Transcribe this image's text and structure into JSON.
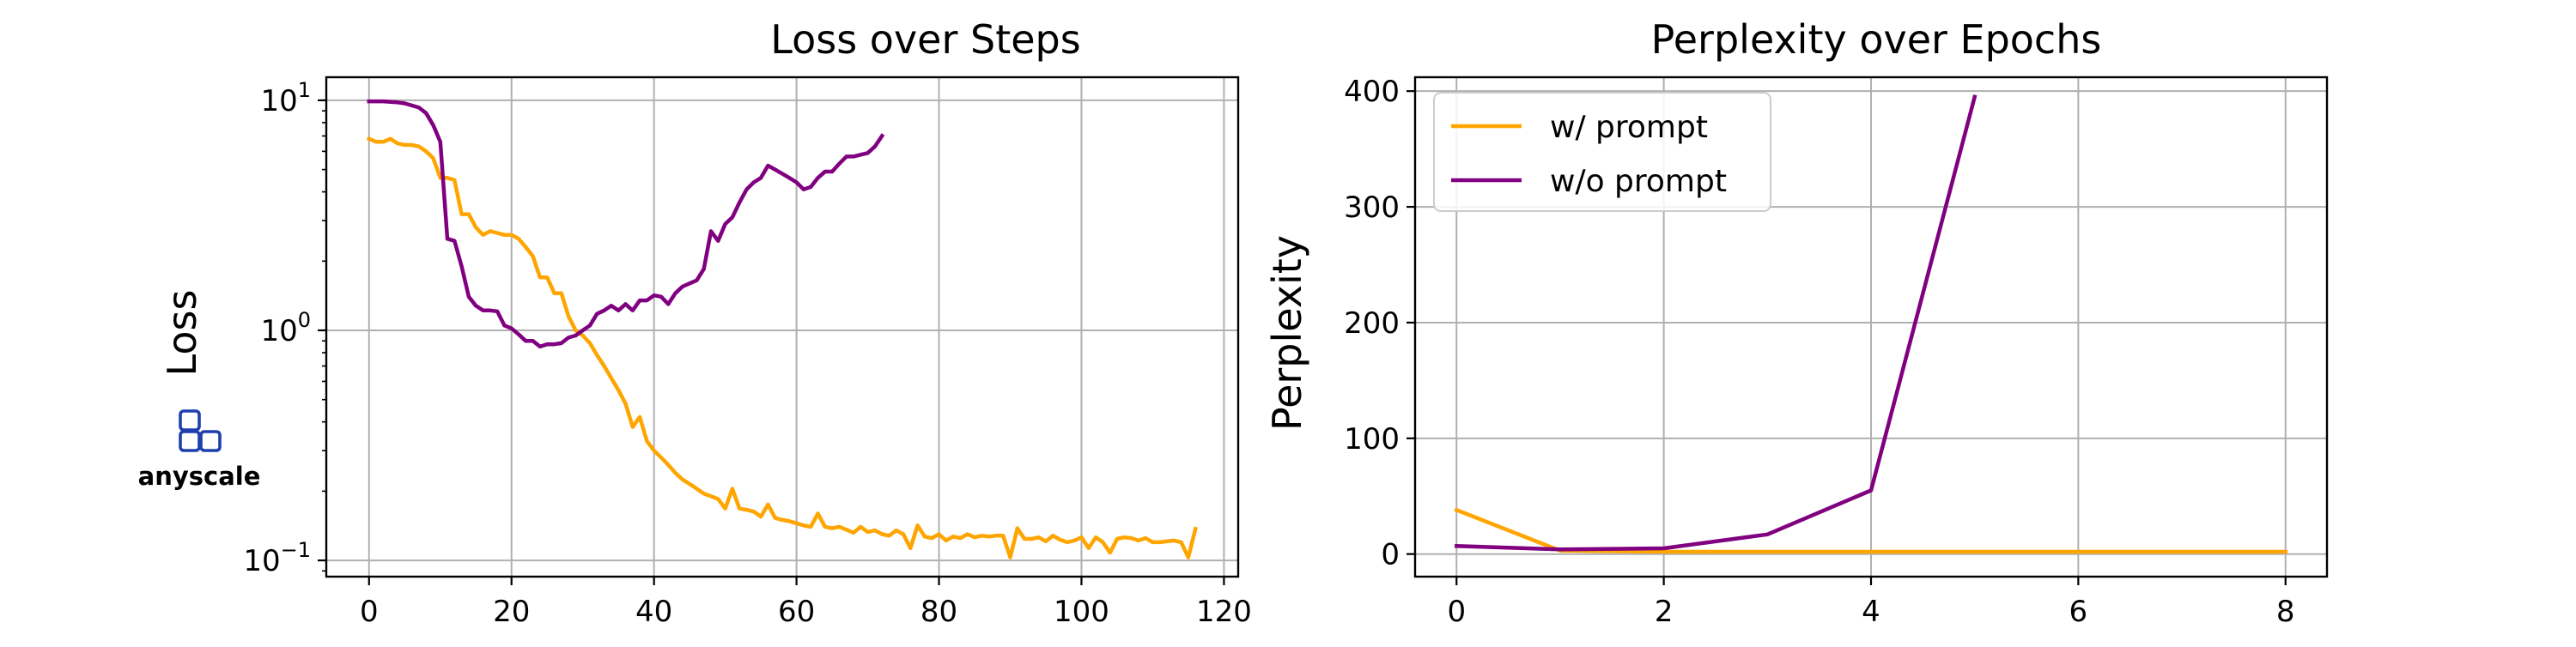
{
  "brand": {
    "name": "anyscale",
    "color": "#1f3fae"
  },
  "chart_data": [
    {
      "type": "line",
      "title": "Loss over Steps",
      "xlabel": "",
      "ylabel": "Loss",
      "yscale": "log",
      "xlim": [
        -6,
        122
      ],
      "ylim": [
        0.085,
        12.6
      ],
      "grid": true,
      "legend": "none",
      "x_ticks": [
        0,
        20,
        40,
        60,
        80,
        100,
        120
      ],
      "x_tick_labels": [
        "0",
        "20",
        "40",
        "60",
        "80",
        "100",
        "120"
      ],
      "y_ticks": [
        0.1,
        1,
        10
      ],
      "y_tick_labels": [
        {
          "base": "10",
          "exp": "−1"
        },
        {
          "base": "10",
          "exp": "0"
        },
        {
          "base": "10",
          "exp": "1"
        }
      ],
      "series": [
        {
          "name": "w/ prompt",
          "color": "#ffa500",
          "points": [
            [
              0,
              6.8
            ],
            [
              1,
              6.6
            ],
            [
              2,
              6.6
            ],
            [
              3,
              6.8
            ],
            [
              4,
              6.5
            ],
            [
              5,
              6.4
            ],
            [
              6,
              6.4
            ],
            [
              7,
              6.3
            ],
            [
              8,
              6.0
            ],
            [
              9,
              5.6
            ],
            [
              10,
              4.6
            ],
            [
              11,
              4.6
            ],
            [
              12,
              4.5
            ],
            [
              13,
              3.2
            ],
            [
              14,
              3.2
            ],
            [
              15,
              2.8
            ],
            [
              16,
              2.6
            ],
            [
              17,
              2.7
            ],
            [
              18,
              2.65
            ],
            [
              19,
              2.6
            ],
            [
              20,
              2.6
            ],
            [
              21,
              2.5
            ],
            [
              22,
              2.3
            ],
            [
              23,
              2.1
            ],
            [
              24,
              1.7
            ],
            [
              25,
              1.7
            ],
            [
              26,
              1.45
            ],
            [
              27,
              1.45
            ],
            [
              28,
              1.15
            ],
            [
              29,
              1.0
            ],
            [
              30,
              0.95
            ],
            [
              31,
              0.88
            ],
            [
              32,
              0.78
            ],
            [
              33,
              0.7
            ],
            [
              34,
              0.62
            ],
            [
              35,
              0.55
            ],
            [
              36,
              0.48
            ],
            [
              37,
              0.38
            ],
            [
              38,
              0.42
            ],
            [
              39,
              0.33
            ],
            [
              40,
              0.3
            ],
            [
              41,
              0.28
            ],
            [
              42,
              0.26
            ],
            [
              43,
              0.24
            ],
            [
              44,
              0.225
            ],
            [
              45,
              0.215
            ],
            [
              46,
              0.205
            ],
            [
              47,
              0.195
            ],
            [
              48,
              0.19
            ],
            [
              49,
              0.185
            ],
            [
              50,
              0.168
            ],
            [
              51,
              0.205
            ],
            [
              52,
              0.168
            ],
            [
              53,
              0.166
            ],
            [
              54,
              0.163
            ],
            [
              55,
              0.155
            ],
            [
              56,
              0.175
            ],
            [
              57,
              0.153
            ],
            [
              58,
              0.15
            ],
            [
              59,
              0.148
            ],
            [
              60,
              0.145
            ],
            [
              61,
              0.142
            ],
            [
              62,
              0.14
            ],
            [
              63,
              0.16
            ],
            [
              64,
              0.14
            ],
            [
              65,
              0.138
            ],
            [
              66,
              0.14
            ],
            [
              67,
              0.136
            ],
            [
              68,
              0.132
            ],
            [
              69,
              0.14
            ],
            [
              70,
              0.133
            ],
            [
              71,
              0.135
            ],
            [
              72,
              0.13
            ],
            [
              73,
              0.128
            ],
            [
              74,
              0.135
            ],
            [
              75,
              0.13
            ],
            [
              76,
              0.113
            ],
            [
              77,
              0.142
            ],
            [
              78,
              0.127
            ],
            [
              79,
              0.125
            ],
            [
              80,
              0.13
            ],
            [
              81,
              0.122
            ],
            [
              82,
              0.127
            ],
            [
              83,
              0.125
            ],
            [
              84,
              0.13
            ],
            [
              85,
              0.126
            ],
            [
              86,
              0.128
            ],
            [
              87,
              0.127
            ],
            [
              88,
              0.128
            ],
            [
              89,
              0.128
            ],
            [
              90,
              0.103
            ],
            [
              91,
              0.138
            ],
            [
              92,
              0.124
            ],
            [
              93,
              0.124
            ],
            [
              94,
              0.126
            ],
            [
              95,
              0.121
            ],
            [
              96,
              0.128
            ],
            [
              97,
              0.123
            ],
            [
              98,
              0.12
            ],
            [
              99,
              0.122
            ],
            [
              100,
              0.126
            ],
            [
              101,
              0.113
            ],
            [
              102,
              0.126
            ],
            [
              103,
              0.12
            ],
            [
              104,
              0.108
            ],
            [
              105,
              0.124
            ],
            [
              106,
              0.126
            ],
            [
              107,
              0.125
            ],
            [
              108,
              0.122
            ],
            [
              109,
              0.125
            ],
            [
              110,
              0.12
            ],
            [
              111,
              0.12
            ],
            [
              112,
              0.121
            ],
            [
              113,
              0.122
            ],
            [
              114,
              0.12
            ],
            [
              115,
              0.103
            ],
            [
              116,
              0.137
            ]
          ]
        },
        {
          "name": "w/o prompt",
          "color": "#800080",
          "points": [
            [
              0,
              9.9
            ],
            [
              1,
              9.9
            ],
            [
              2,
              9.9
            ],
            [
              3,
              9.85
            ],
            [
              4,
              9.8
            ],
            [
              5,
              9.7
            ],
            [
              6,
              9.5
            ],
            [
              7,
              9.3
            ],
            [
              8,
              8.8
            ],
            [
              9,
              7.8
            ],
            [
              10,
              6.6
            ],
            [
              11,
              2.5
            ],
            [
              12,
              2.45
            ],
            [
              13,
              1.9
            ],
            [
              14,
              1.4
            ],
            [
              15,
              1.28
            ],
            [
              16,
              1.22
            ],
            [
              17,
              1.22
            ],
            [
              18,
              1.21
            ],
            [
              19,
              1.05
            ],
            [
              20,
              1.02
            ],
            [
              21,
              0.96
            ],
            [
              22,
              0.9
            ],
            [
              23,
              0.9
            ],
            [
              24,
              0.85
            ],
            [
              25,
              0.87
            ],
            [
              26,
              0.87
            ],
            [
              27,
              0.88
            ],
            [
              28,
              0.93
            ],
            [
              29,
              0.95
            ],
            [
              30,
              1.0
            ],
            [
              31,
              1.05
            ],
            [
              32,
              1.18
            ],
            [
              33,
              1.22
            ],
            [
              34,
              1.28
            ],
            [
              35,
              1.22
            ],
            [
              36,
              1.3
            ],
            [
              37,
              1.22
            ],
            [
              38,
              1.35
            ],
            [
              39,
              1.35
            ],
            [
              40,
              1.42
            ],
            [
              41,
              1.4
            ],
            [
              42,
              1.3
            ],
            [
              43,
              1.45
            ],
            [
              44,
              1.55
            ],
            [
              45,
              1.6
            ],
            [
              46,
              1.65
            ],
            [
              47,
              1.85
            ],
            [
              48,
              2.7
            ],
            [
              49,
              2.45
            ],
            [
              50,
              2.9
            ],
            [
              51,
              3.1
            ],
            [
              52,
              3.6
            ],
            [
              53,
              4.1
            ],
            [
              54,
              4.4
            ],
            [
              55,
              4.6
            ],
            [
              56,
              5.2
            ],
            [
              57,
              5.0
            ],
            [
              58,
              4.8
            ],
            [
              59,
              4.6
            ],
            [
              60,
              4.4
            ],
            [
              61,
              4.1
            ],
            [
              62,
              4.2
            ],
            [
              63,
              4.6
            ],
            [
              64,
              4.9
            ],
            [
              65,
              4.9
            ],
            [
              66,
              5.3
            ],
            [
              67,
              5.7
            ],
            [
              68,
              5.7
            ],
            [
              69,
              5.8
            ],
            [
              70,
              5.9
            ],
            [
              71,
              6.3
            ],
            [
              72,
              7.0
            ]
          ]
        }
      ]
    },
    {
      "type": "line",
      "title": "Perplexity over Epochs",
      "xlabel": "",
      "ylabel": "Perplexity",
      "xlim": [
        -0.4,
        8.4
      ],
      "ylim": [
        -19.5,
        412
      ],
      "grid": true,
      "legend": "top-left",
      "x_ticks": [
        0,
        2,
        4,
        6,
        8
      ],
      "x_tick_labels": [
        "0",
        "2",
        "4",
        "6",
        "8"
      ],
      "y_ticks": [
        0,
        100,
        200,
        300,
        400
      ],
      "y_tick_labels": [
        "0",
        "100",
        "200",
        "300",
        "400"
      ],
      "series": [
        {
          "name": "w/ prompt",
          "color": "#ffa500",
          "x": [
            0,
            1,
            2,
            3,
            4,
            5,
            6,
            7,
            8
          ],
          "y": [
            38,
            3,
            2,
            2,
            2,
            2,
            2,
            2,
            2
          ]
        },
        {
          "name": "w/o prompt",
          "color": "#800080",
          "x": [
            0,
            1,
            2,
            3,
            4,
            5
          ],
          "y": [
            7,
            4,
            5,
            17,
            55,
            395
          ]
        }
      ]
    }
  ]
}
